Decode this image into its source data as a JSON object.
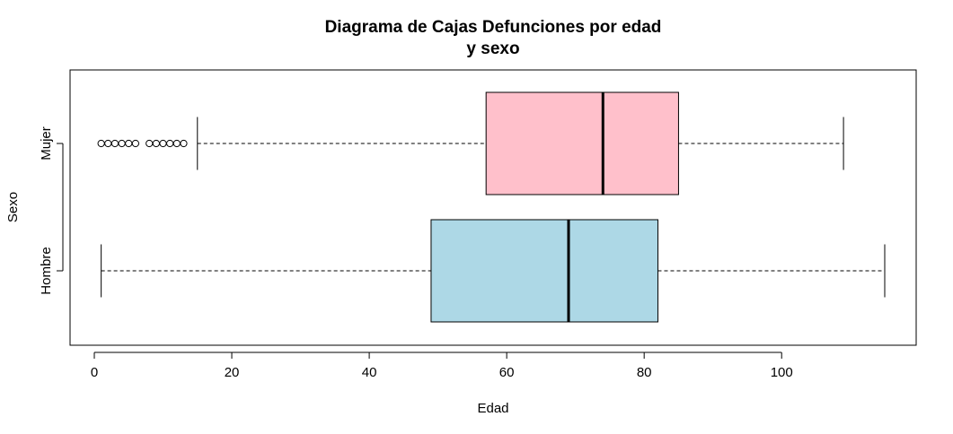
{
  "chart_data": {
    "type": "boxplot",
    "orientation": "horizontal",
    "title": [
      "Diagrama de Cajas Defunciones por edad",
      "y sexo"
    ],
    "xlabel": "Edad",
    "ylabel": "Sexo",
    "xlim": [
      0,
      115
    ],
    "x_ticks": [
      0,
      20,
      40,
      60,
      80,
      100
    ],
    "categories": [
      "Hombre",
      "Mujer"
    ],
    "grid": false,
    "legend": "none",
    "series": [
      {
        "name": "Hombre",
        "color": "#add8e6",
        "whisker_low": 1,
        "q1": 49,
        "median": 69,
        "q3": 82,
        "whisker_high": 115,
        "outliers": []
      },
      {
        "name": "Mujer",
        "color": "#ffc0cb",
        "whisker_low": 15,
        "q1": 57,
        "median": 74,
        "q3": 85,
        "whisker_high": 109,
        "outliers": [
          1,
          2,
          3,
          4,
          5,
          6,
          8,
          9,
          10,
          11,
          12,
          13
        ]
      }
    ]
  }
}
